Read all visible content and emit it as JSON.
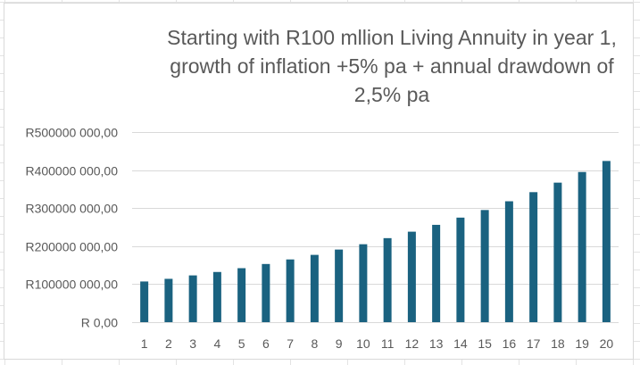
{
  "chart_data": {
    "type": "bar",
    "title_lines": [
      "Starting with R100 mllion Living Annuity in year 1,",
      "growth of inflation +5% pa + annual drawdown of",
      "2,5% pa"
    ],
    "title": "Starting with R100 mllion Living Annuity in year 1, growth of inflation +5% pa + annual drawdown of 2,5% pa",
    "xlabel": "",
    "ylabel": "",
    "categories": [
      "1",
      "2",
      "3",
      "4",
      "5",
      "6",
      "7",
      "8",
      "9",
      "10",
      "11",
      "12",
      "13",
      "14",
      "15",
      "16",
      "17",
      "18",
      "19",
      "20"
    ],
    "values": [
      107000000,
      114000000,
      123000000,
      132000000,
      142000000,
      153000000,
      165000000,
      177000000,
      191000000,
      205000000,
      221000000,
      238000000,
      256000000,
      275000000,
      295000000,
      318000000,
      342000000,
      367000000,
      395000000,
      424000000
    ],
    "ylim": [
      0,
      500000000
    ],
    "yticks": [
      0,
      100000000,
      200000000,
      300000000,
      400000000,
      500000000
    ],
    "ytick_labels": [
      "R 0,00",
      "R100000 000,00",
      "R200000 000,00",
      "R300000 000,00",
      "R400000 000,00",
      "R500000 000,00"
    ],
    "grid": true,
    "legend": "none",
    "bar_color": "#1a6280",
    "gridline_color": "#d9d9d9"
  }
}
